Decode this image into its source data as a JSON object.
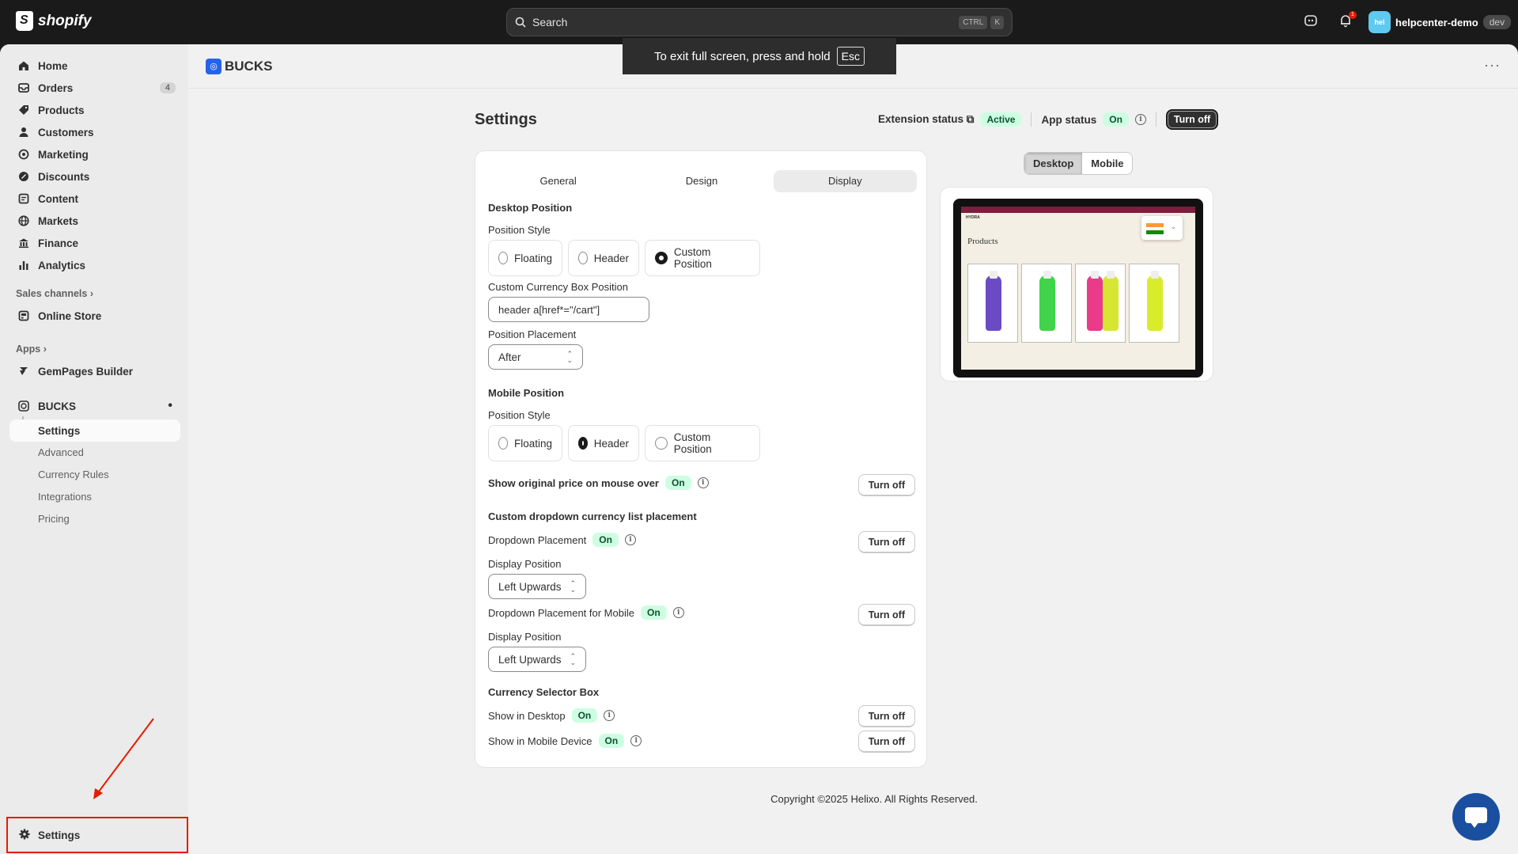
{
  "topbar": {
    "brand": "shopify",
    "search_placeholder": "Search",
    "kbd1": "CTRL",
    "kbd2": "K",
    "notification_count": "1",
    "store_avatar": "hel",
    "store_name": "helpcenter-demo",
    "env_badge": "dev"
  },
  "fullscreen_toast": {
    "text": "To exit full screen, press and hold",
    "key": "Esc"
  },
  "sidebar": {
    "items": [
      {
        "label": "Home",
        "icon": "home-icon"
      },
      {
        "label": "Orders",
        "icon": "orders-icon",
        "badge": "4"
      },
      {
        "label": "Products",
        "icon": "tag-icon"
      },
      {
        "label": "Customers",
        "icon": "person-icon"
      },
      {
        "label": "Marketing",
        "icon": "target-icon"
      },
      {
        "label": "Discounts",
        "icon": "discount-icon"
      },
      {
        "label": "Content",
        "icon": "content-icon"
      },
      {
        "label": "Markets",
        "icon": "globe-icon"
      },
      {
        "label": "Finance",
        "icon": "bank-icon"
      },
      {
        "label": "Analytics",
        "icon": "chart-icon"
      }
    ],
    "sales_channels_label": "Sales channels",
    "online_store": "Online Store",
    "apps_label": "Apps",
    "gempages": "GemPages Builder",
    "bucks": "BUCKS",
    "bucks_sub": [
      "Settings",
      "Advanced",
      "Currency Rules",
      "Integrations",
      "Pricing"
    ],
    "settings": "Settings"
  },
  "app": {
    "title": "BUCKS",
    "page_title": "Settings",
    "extension_status_label": "Extension status",
    "extension_status": "Active",
    "app_status_label": "App status",
    "app_status": "On",
    "turn_off_main": "Turn off"
  },
  "tabs": [
    "General",
    "Design",
    "Display"
  ],
  "desktop": {
    "heading": "Desktop Position",
    "position_style_label": "Position Style",
    "options": [
      "Floating",
      "Header",
      "Custom Position"
    ],
    "custom_box_label": "Custom Currency Box Position",
    "custom_box_value": "header a[href*=\"/cart\"]",
    "placement_label": "Position Placement",
    "placement_value": "After"
  },
  "mobile": {
    "heading": "Mobile Position",
    "position_style_label": "Position Style",
    "options": [
      "Floating",
      "Header",
      "Custom Position"
    ]
  },
  "original_price": {
    "label": "Show original price on mouse over",
    "status": "On",
    "button": "Turn off"
  },
  "dropdown": {
    "heading": "Custom dropdown currency list placement",
    "placement_label": "Dropdown Placement",
    "placement_status": "On",
    "placement_button": "Turn off",
    "display_position_label": "Display Position",
    "display_position_value": "Left Upwards",
    "mobile_label": "Dropdown Placement for Mobile",
    "mobile_status": "On",
    "mobile_button": "Turn off",
    "mobile_display_position_label": "Display Position",
    "mobile_display_position_value": "Left Upwards"
  },
  "selector_box": {
    "heading": "Currency Selector Box",
    "desktop_label": "Show in Desktop",
    "desktop_status": "On",
    "desktop_button": "Turn off",
    "mobile_label": "Show in Mobile Device",
    "mobile_status": "On",
    "mobile_button": "Turn off"
  },
  "preview": {
    "seg": [
      "Desktop",
      "Mobile"
    ],
    "store_brand": "HYDRA",
    "products_title": "Products"
  },
  "footer": "Copyright ©2025 Helixo. All Rights Reserved."
}
